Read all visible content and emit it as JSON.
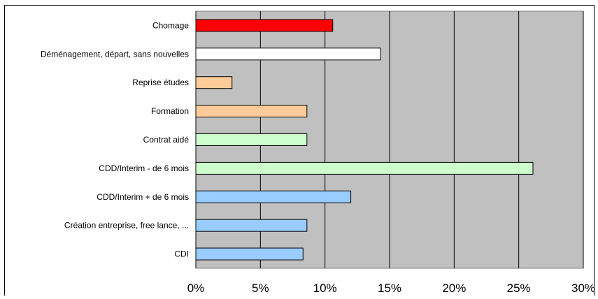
{
  "chart_data": {
    "type": "bar",
    "orientation": "horizontal",
    "categories": [
      "Chomage",
      "Déménagement, départ, sans nouvelles",
      "Reprise études",
      "Formation",
      "Contrat aidé",
      "CDD/Interim - de 6 mois",
      "CDD/Interim + de 6 mois",
      "Création entreprise, free lance, ...",
      "CDI"
    ],
    "values": [
      0.106,
      0.143,
      0.028,
      0.086,
      0.086,
      0.261,
      0.12,
      0.086,
      0.083
    ],
    "colors": [
      "#ff0000",
      "#ffffff",
      "#ffcc99",
      "#ffcc99",
      "#ccffcc",
      "#ccffcc",
      "#99ccff",
      "#99ccff",
      "#99ccff"
    ],
    "xlim": [
      0,
      0.3
    ],
    "xticks": [
      0,
      0.05,
      0.1,
      0.15,
      0.2,
      0.25,
      0.3
    ],
    "xtick_labels": [
      "0%",
      "5%",
      "10%",
      "15%",
      "20%",
      "25%",
      "30%"
    ],
    "grid": "vertical",
    "plot_background": "#c0c0c0",
    "title": "",
    "xlabel": "",
    "ylabel": ""
  }
}
